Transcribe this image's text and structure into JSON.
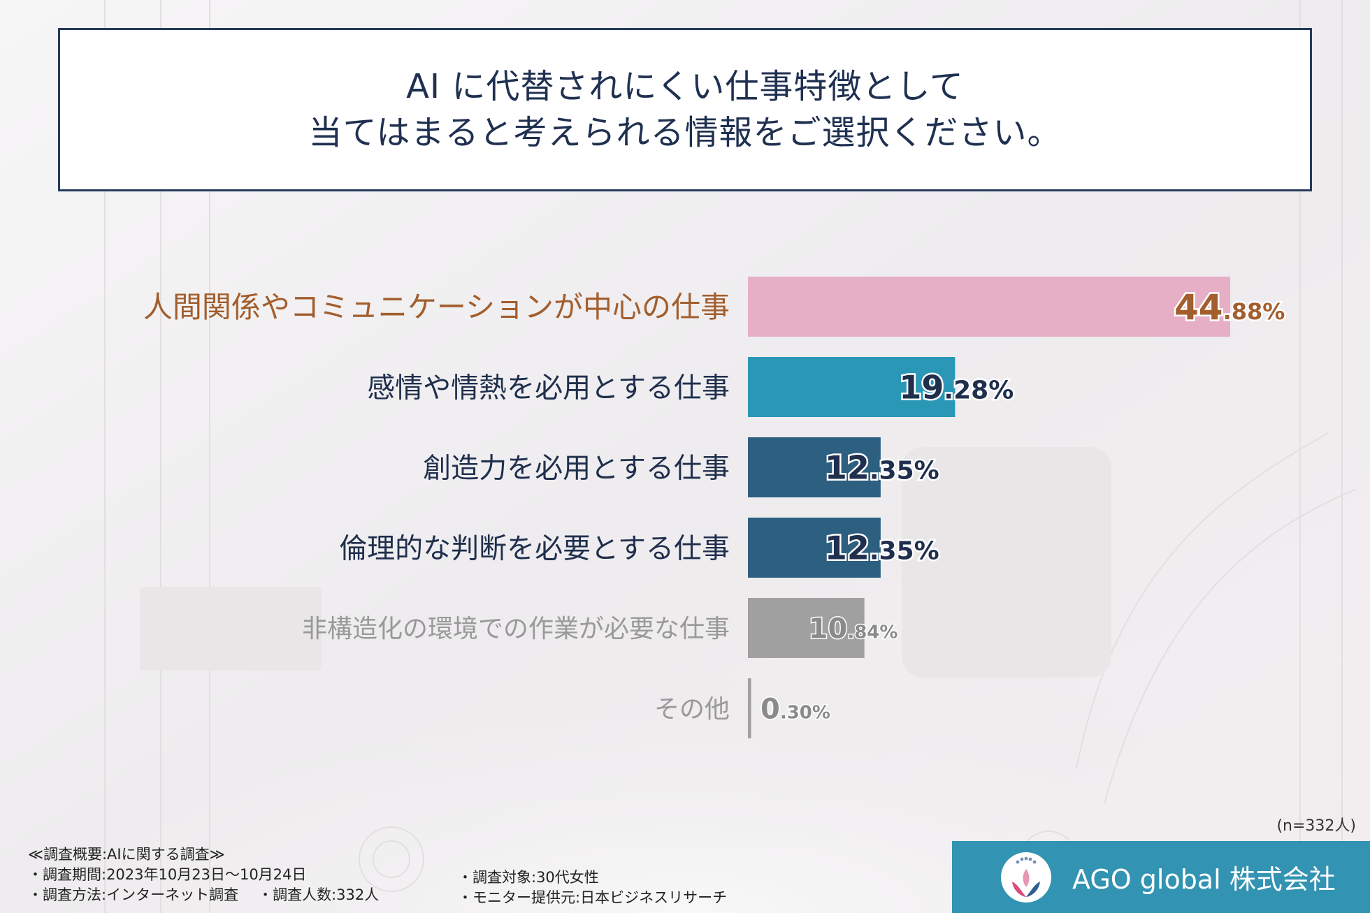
{
  "title": {
    "line1": "AI に代替されにくい仕事特徴として",
    "line2": "当てはまると考えられる情報をご選択ください。"
  },
  "chart_data": {
    "type": "bar",
    "orientation": "horizontal",
    "categories": [
      "人間関係やコミュニケーションが中心の仕事",
      "感情や情熱を必用とする仕事",
      "創造力を必用とする仕事",
      "倫理的な判断を必要とする仕事",
      "非構造化の環境での作業が必要な仕事",
      "その他"
    ],
    "values": [
      44.88,
      19.28,
      12.35,
      12.35,
      10.84,
      0.3
    ],
    "value_labels": [
      {
        "int": "44",
        "dec": ".88%"
      },
      {
        "int": "19",
        "dec": ".28%"
      },
      {
        "int": "12",
        "dec": ".35%"
      },
      {
        "int": "12",
        "dec": ".35%"
      },
      {
        "int": "10",
        "dec": ".84%"
      },
      {
        "int": "0",
        "dec": ".30%"
      }
    ],
    "bar_colors": [
      "#e6afc5",
      "#2b97b7",
      "#2c5f80",
      "#2c5f80",
      "#a0a0a0",
      "#a0a0a0"
    ],
    "label_colors": [
      "#a25e2d",
      "#1f2f4d",
      "#1f2f4d",
      "#1f2f4d",
      "#999999",
      "#999999"
    ],
    "value_colors": [
      "#a25e2d",
      "#1f2f4d",
      "#1f2f4d",
      "#1f2f4d",
      "#8a8a8a",
      "#8a8a8a"
    ],
    "xlim": [
      0,
      44.88
    ]
  },
  "sample_note": "(n=332人)",
  "footer": {
    "summary": "≪調査概要:AIに関する調査≫",
    "period": "・調査期間:2023年10月23日～10月24日",
    "method": "・調査方法:インターネット調査",
    "count": "・調査人数:332人",
    "target": "・調査対象:30代女性",
    "provider": "・モニター提供元:日本ビジネスリサーチ"
  },
  "brand": {
    "name": "AGO global 株式会社",
    "logo_icon": "lotus-hands-icon",
    "color": "#3293b2"
  }
}
